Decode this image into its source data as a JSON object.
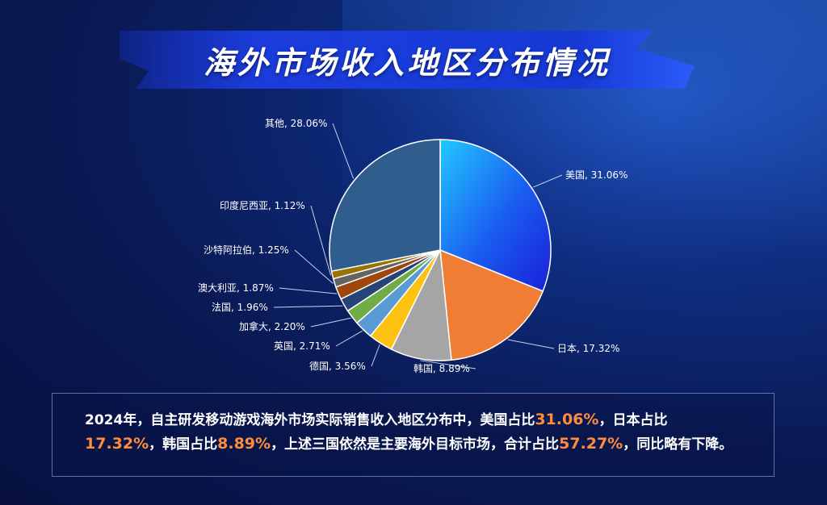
{
  "title": "海外市场收入地区分布情况",
  "chart_data": {
    "type": "pie",
    "title": "",
    "slices": [
      {
        "label": "美国, 31.06%",
        "value": 31.06,
        "color": "#1a5cf0"
      },
      {
        "label": "日本, 17.32%",
        "value": 17.32,
        "color": "#ef7d33"
      },
      {
        "label": "韩国, 8.89%",
        "value": 8.89,
        "color": "#a5a5a5"
      },
      {
        "label": "德国, 3.56%",
        "value": 3.56,
        "color": "#fcc111"
      },
      {
        "label": "英国, 2.71%",
        "value": 2.71,
        "color": "#5b9bd5"
      },
      {
        "label": "加拿大, 2.20%",
        "value": 2.2,
        "color": "#70ad47"
      },
      {
        "label": "法国, 1.96%",
        "value": 1.96,
        "color": "#264478"
      },
      {
        "label": "澳大利亚, 1.87%",
        "value": 1.87,
        "color": "#9e480e"
      },
      {
        "label": "沙特阿拉伯, 1.25%",
        "value": 1.25,
        "color": "#636363"
      },
      {
        "label": "印度尼西亚, 1.12%",
        "value": 1.12,
        "color": "#997300"
      },
      {
        "label": "其他, 28.06%",
        "value": 28.06,
        "color": "#2f5d8e"
      }
    ]
  },
  "summary": {
    "p1": "2024年，自主研发移动游戏海外市场实际销售收入地区分布中，美国占比",
    "v1": "31.06%",
    "p2": "，日本占比",
    "v2": "17.32%",
    "p3": "，韩国占比",
    "v3": "8.89%",
    "p4": "，上述三国依然是主要海外目标市场，合计占比",
    "v4": "57.27%",
    "p5": "，同比略有下降。"
  }
}
